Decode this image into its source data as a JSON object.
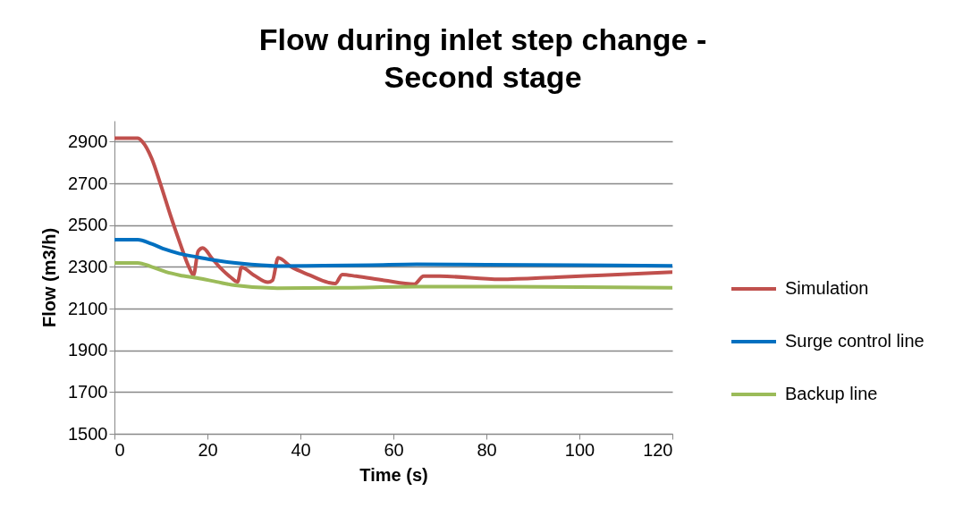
{
  "chart_data": {
    "type": "line",
    "title": "Flow during inlet step change -\nSecond stage",
    "xlabel": "Time (s)",
    "ylabel": "Flow (m3/h)",
    "xlim": [
      0,
      120
    ],
    "xticks": [
      0,
      20,
      40,
      60,
      80,
      100,
      120
    ],
    "ylim": [
      1500,
      3000
    ],
    "yticks": [
      1500,
      1700,
      1900,
      2100,
      2300,
      2500,
      2700,
      2900
    ],
    "grid": "y",
    "legend": "right",
    "marker": "none",
    "line_style": "solid",
    "series": [
      {
        "name": "Simulation",
        "color": "#c0504d",
        "x": [
          0,
          5,
          6,
          8,
          10,
          12,
          14,
          16,
          17,
          18,
          19,
          21,
          23,
          25,
          26.5,
          27.3,
          30,
          33,
          34,
          35.2,
          38,
          42,
          46,
          47.5,
          49,
          52,
          58,
          64.5,
          66.5,
          70,
          83,
          95,
          105,
          120
        ],
        "values": [
          2916,
          2916,
          2900,
          2820,
          2690,
          2550,
          2420,
          2300,
          2260,
          2375,
          2390,
          2340,
          2290,
          2250,
          2228,
          2297,
          2260,
          2226,
          2235,
          2343,
          2300,
          2260,
          2225,
          2220,
          2263,
          2255,
          2235,
          2217,
          2255,
          2255,
          2240,
          2250,
          2260,
          2275
        ]
      },
      {
        "name": "Surge control line",
        "color": "#0070c0",
        "x": [
          0,
          5,
          8,
          11,
          14,
          17.7,
          22,
          27,
          35,
          45,
          55,
          65,
          80,
          100,
          120
        ],
        "values": [
          2430,
          2430,
          2410,
          2383,
          2363,
          2347,
          2330,
          2316,
          2304,
          2306,
          2308,
          2312,
          2310,
          2308,
          2305
        ]
      },
      {
        "name": "Backup line",
        "color": "#9bbb59",
        "x": [
          0,
          5,
          8,
          11,
          14,
          17.7,
          22,
          26,
          35,
          50,
          65,
          80,
          100,
          120
        ],
        "values": [
          2319,
          2319,
          2300,
          2276,
          2260,
          2247,
          2228,
          2211,
          2197,
          2200,
          2205,
          2205,
          2203,
          2200
        ]
      }
    ]
  }
}
